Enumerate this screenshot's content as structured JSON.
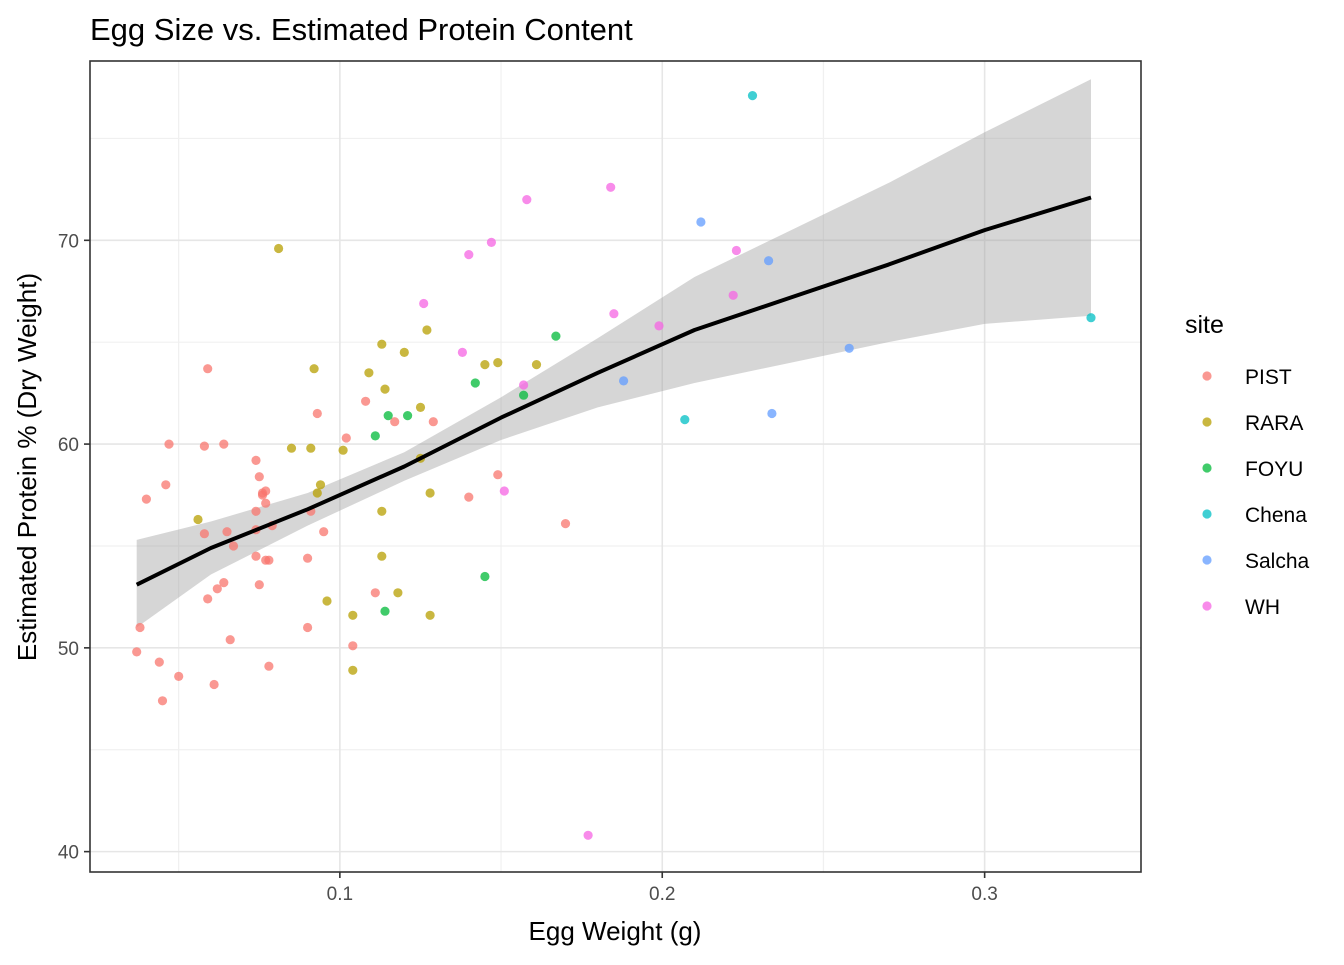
{
  "chart_data": {
    "type": "scatter",
    "title": "Egg Size vs. Estimated Protein Content",
    "xlabel": "Egg Weight (g)",
    "ylabel": "Estimated Protein % (Dry Weight)",
    "xlim": [
      0.0225,
      0.3485
    ],
    "ylim": [
      39.0,
      78.8
    ],
    "x_ticks": [
      0.1,
      0.2,
      0.3
    ],
    "x_tick_labels": [
      "0.1",
      "0.2",
      "0.3"
    ],
    "y_ticks": [
      40,
      50,
      60,
      70
    ],
    "y_tick_labels": [
      "40",
      "50",
      "60",
      "70"
    ],
    "grid": true,
    "legend": {
      "title": "site",
      "placement": "right"
    },
    "series": [
      {
        "name": "PIST",
        "color": "#F8766D",
        "points": [
          [
            0.037,
            49.8
          ],
          [
            0.038,
            51.0
          ],
          [
            0.04,
            57.3
          ],
          [
            0.044,
            49.3
          ],
          [
            0.045,
            47.4
          ],
          [
            0.046,
            58.0
          ],
          [
            0.047,
            60.0
          ],
          [
            0.05,
            48.6
          ],
          [
            0.058,
            55.6
          ],
          [
            0.058,
            59.9
          ],
          [
            0.059,
            52.4
          ],
          [
            0.059,
            63.7
          ],
          [
            0.061,
            48.2
          ],
          [
            0.062,
            52.9
          ],
          [
            0.064,
            53.2
          ],
          [
            0.064,
            60.0
          ],
          [
            0.065,
            55.7
          ],
          [
            0.066,
            50.4
          ],
          [
            0.067,
            55.0
          ],
          [
            0.074,
            54.5
          ],
          [
            0.074,
            56.7
          ],
          [
            0.074,
            55.8
          ],
          [
            0.074,
            59.2
          ],
          [
            0.075,
            58.4
          ],
          [
            0.075,
            53.1
          ],
          [
            0.076,
            57.6
          ],
          [
            0.076,
            57.5
          ],
          [
            0.077,
            57.7
          ],
          [
            0.077,
            57.1
          ],
          [
            0.077,
            54.3
          ],
          [
            0.078,
            54.3
          ],
          [
            0.078,
            49.1
          ],
          [
            0.079,
            56.0
          ],
          [
            0.09,
            54.4
          ],
          [
            0.09,
            51.0
          ],
          [
            0.091,
            56.7
          ],
          [
            0.093,
            61.5
          ],
          [
            0.095,
            55.7
          ],
          [
            0.102,
            60.3
          ],
          [
            0.104,
            50.1
          ],
          [
            0.108,
            62.1
          ],
          [
            0.111,
            52.7
          ],
          [
            0.117,
            61.1
          ],
          [
            0.129,
            61.1
          ],
          [
            0.14,
            57.4
          ],
          [
            0.149,
            58.5
          ],
          [
            0.17,
            56.1
          ]
        ]
      },
      {
        "name": "RARA",
        "color": "#B79F00",
        "points": [
          [
            0.056,
            56.3
          ],
          [
            0.081,
            69.6
          ],
          [
            0.085,
            59.8
          ],
          [
            0.091,
            59.8
          ],
          [
            0.092,
            63.7
          ],
          [
            0.093,
            57.6
          ],
          [
            0.094,
            58.0
          ],
          [
            0.096,
            52.3
          ],
          [
            0.101,
            59.7
          ],
          [
            0.104,
            51.6
          ],
          [
            0.104,
            48.9
          ],
          [
            0.109,
            63.5
          ],
          [
            0.113,
            64.9
          ],
          [
            0.113,
            56.7
          ],
          [
            0.113,
            54.5
          ],
          [
            0.114,
            62.7
          ],
          [
            0.118,
            52.7
          ],
          [
            0.12,
            64.5
          ],
          [
            0.125,
            59.3
          ],
          [
            0.125,
            61.8
          ],
          [
            0.127,
            65.6
          ],
          [
            0.128,
            57.6
          ],
          [
            0.128,
            51.6
          ],
          [
            0.145,
            63.9
          ],
          [
            0.149,
            64.0
          ],
          [
            0.161,
            63.9
          ]
        ]
      },
      {
        "name": "FOYU",
        "color": "#00BA38",
        "points": [
          [
            0.111,
            60.4
          ],
          [
            0.114,
            51.8
          ],
          [
            0.115,
            61.4
          ],
          [
            0.121,
            61.4
          ],
          [
            0.142,
            63.0
          ],
          [
            0.145,
            53.5
          ],
          [
            0.157,
            62.4
          ],
          [
            0.167,
            65.3
          ]
        ]
      },
      {
        "name": "Chena",
        "color": "#00BFC4",
        "points": [
          [
            0.207,
            61.2
          ],
          [
            0.228,
            77.1
          ],
          [
            0.333,
            66.2
          ]
        ]
      },
      {
        "name": "Salcha",
        "color": "#619CFF",
        "points": [
          [
            0.188,
            63.1
          ],
          [
            0.212,
            70.9
          ],
          [
            0.233,
            69.0
          ],
          [
            0.234,
            61.5
          ],
          [
            0.258,
            64.7
          ]
        ]
      },
      {
        "name": "WH",
        "color": "#F564E3",
        "points": [
          [
            0.126,
            66.9
          ],
          [
            0.138,
            64.5
          ],
          [
            0.14,
            69.3
          ],
          [
            0.147,
            69.9
          ],
          [
            0.151,
            57.7
          ],
          [
            0.157,
            62.9
          ],
          [
            0.158,
            72.0
          ],
          [
            0.177,
            40.8
          ],
          [
            0.184,
            72.6
          ],
          [
            0.185,
            66.4
          ],
          [
            0.199,
            65.8
          ],
          [
            0.222,
            67.3
          ],
          [
            0.223,
            69.5
          ]
        ]
      }
    ],
    "trend": {
      "color": "#000000",
      "band_color": "#999999",
      "x": [
        0.037,
        0.06,
        0.09,
        0.12,
        0.15,
        0.18,
        0.21,
        0.24,
        0.27,
        0.3,
        0.333
      ],
      "y": [
        53.1,
        54.9,
        56.8,
        58.9,
        61.3,
        63.5,
        65.6,
        67.2,
        68.8,
        70.5,
        72.1
      ],
      "lower": [
        51.0,
        53.6,
        56.0,
        58.2,
        60.2,
        61.8,
        63.0,
        64.0,
        65.0,
        65.9,
        66.3
      ],
      "upper": [
        55.3,
        56.2,
        57.6,
        59.6,
        62.3,
        65.2,
        68.2,
        70.5,
        72.8,
        75.3,
        77.9
      ]
    }
  }
}
